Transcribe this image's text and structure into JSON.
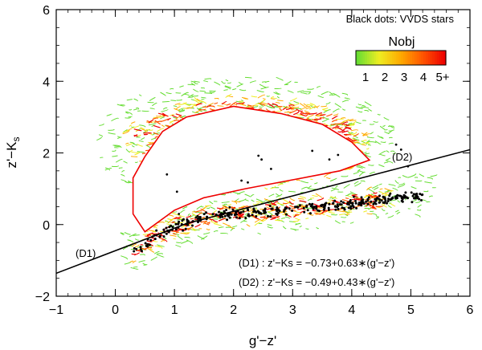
{
  "chart_data": {
    "type": "contour-scatter",
    "xlabel": "g'−z'",
    "ylabel_main": "z'−K",
    "ylabel_sub": "s",
    "xlim": [
      -1,
      6
    ],
    "ylim": [
      -2,
      6
    ],
    "xticks": [
      -1,
      0,
      1,
      2,
      3,
      4,
      5,
      6
    ],
    "yticks": [
      -2,
      0,
      2,
      4,
      6
    ],
    "xtick_labels": [
      "−1",
      "0",
      "1",
      "2",
      "3",
      "4",
      "5",
      "6"
    ],
    "ytick_labels": [
      "−2",
      "0",
      "2",
      "4",
      "6"
    ],
    "annotation_top": "Black dots: VVDS stars",
    "legend": {
      "title": "Nobj",
      "levels": [
        "1",
        "2",
        "3",
        "4",
        "5+"
      ],
      "colors": [
        "#66dd33",
        "#eeee22",
        "#ffaa00",
        "#ff5500",
        "#ee0000"
      ]
    },
    "lines": [
      {
        "name": "(D1)",
        "equation": "(D1) : z'−Ks  =  −0.73+0.63∗(g'−z')",
        "intercept": -0.73,
        "slope": 0.63
      },
      {
        "name": "(D2)",
        "equation": "(D2) : z'−Ks  =  −0.49+0.43∗(g'−z')",
        "intercept": -0.49,
        "slope": 0.43
      }
    ],
    "stellar_locus": [
      [
        0.3,
        -0.8
      ],
      [
        0.6,
        -0.45
      ],
      [
        1.0,
        -0.05
      ],
      [
        1.5,
        0.2
      ],
      [
        2.0,
        0.3
      ],
      [
        2.5,
        0.35
      ],
      [
        3.0,
        0.42
      ],
      [
        3.5,
        0.5
      ],
      [
        4.0,
        0.6
      ],
      [
        4.5,
        0.7
      ],
      [
        5.0,
        0.8
      ]
    ],
    "galaxy_region_outline": [
      [
        0.3,
        1.3
      ],
      [
        0.5,
        1.9
      ],
      [
        0.8,
        2.6
      ],
      [
        1.2,
        3.0
      ],
      [
        2.0,
        3.3
      ],
      [
        2.8,
        3.1
      ],
      [
        3.5,
        2.8
      ],
      [
        4.0,
        2.3
      ],
      [
        4.3,
        1.8
      ],
      [
        3.8,
        1.5
      ],
      [
        3.0,
        1.25
      ],
      [
        2.2,
        1.0
      ],
      [
        1.5,
        0.75
      ],
      [
        1.0,
        0.4
      ],
      [
        0.5,
        -0.2
      ],
      [
        0.3,
        0.3
      ]
    ]
  }
}
